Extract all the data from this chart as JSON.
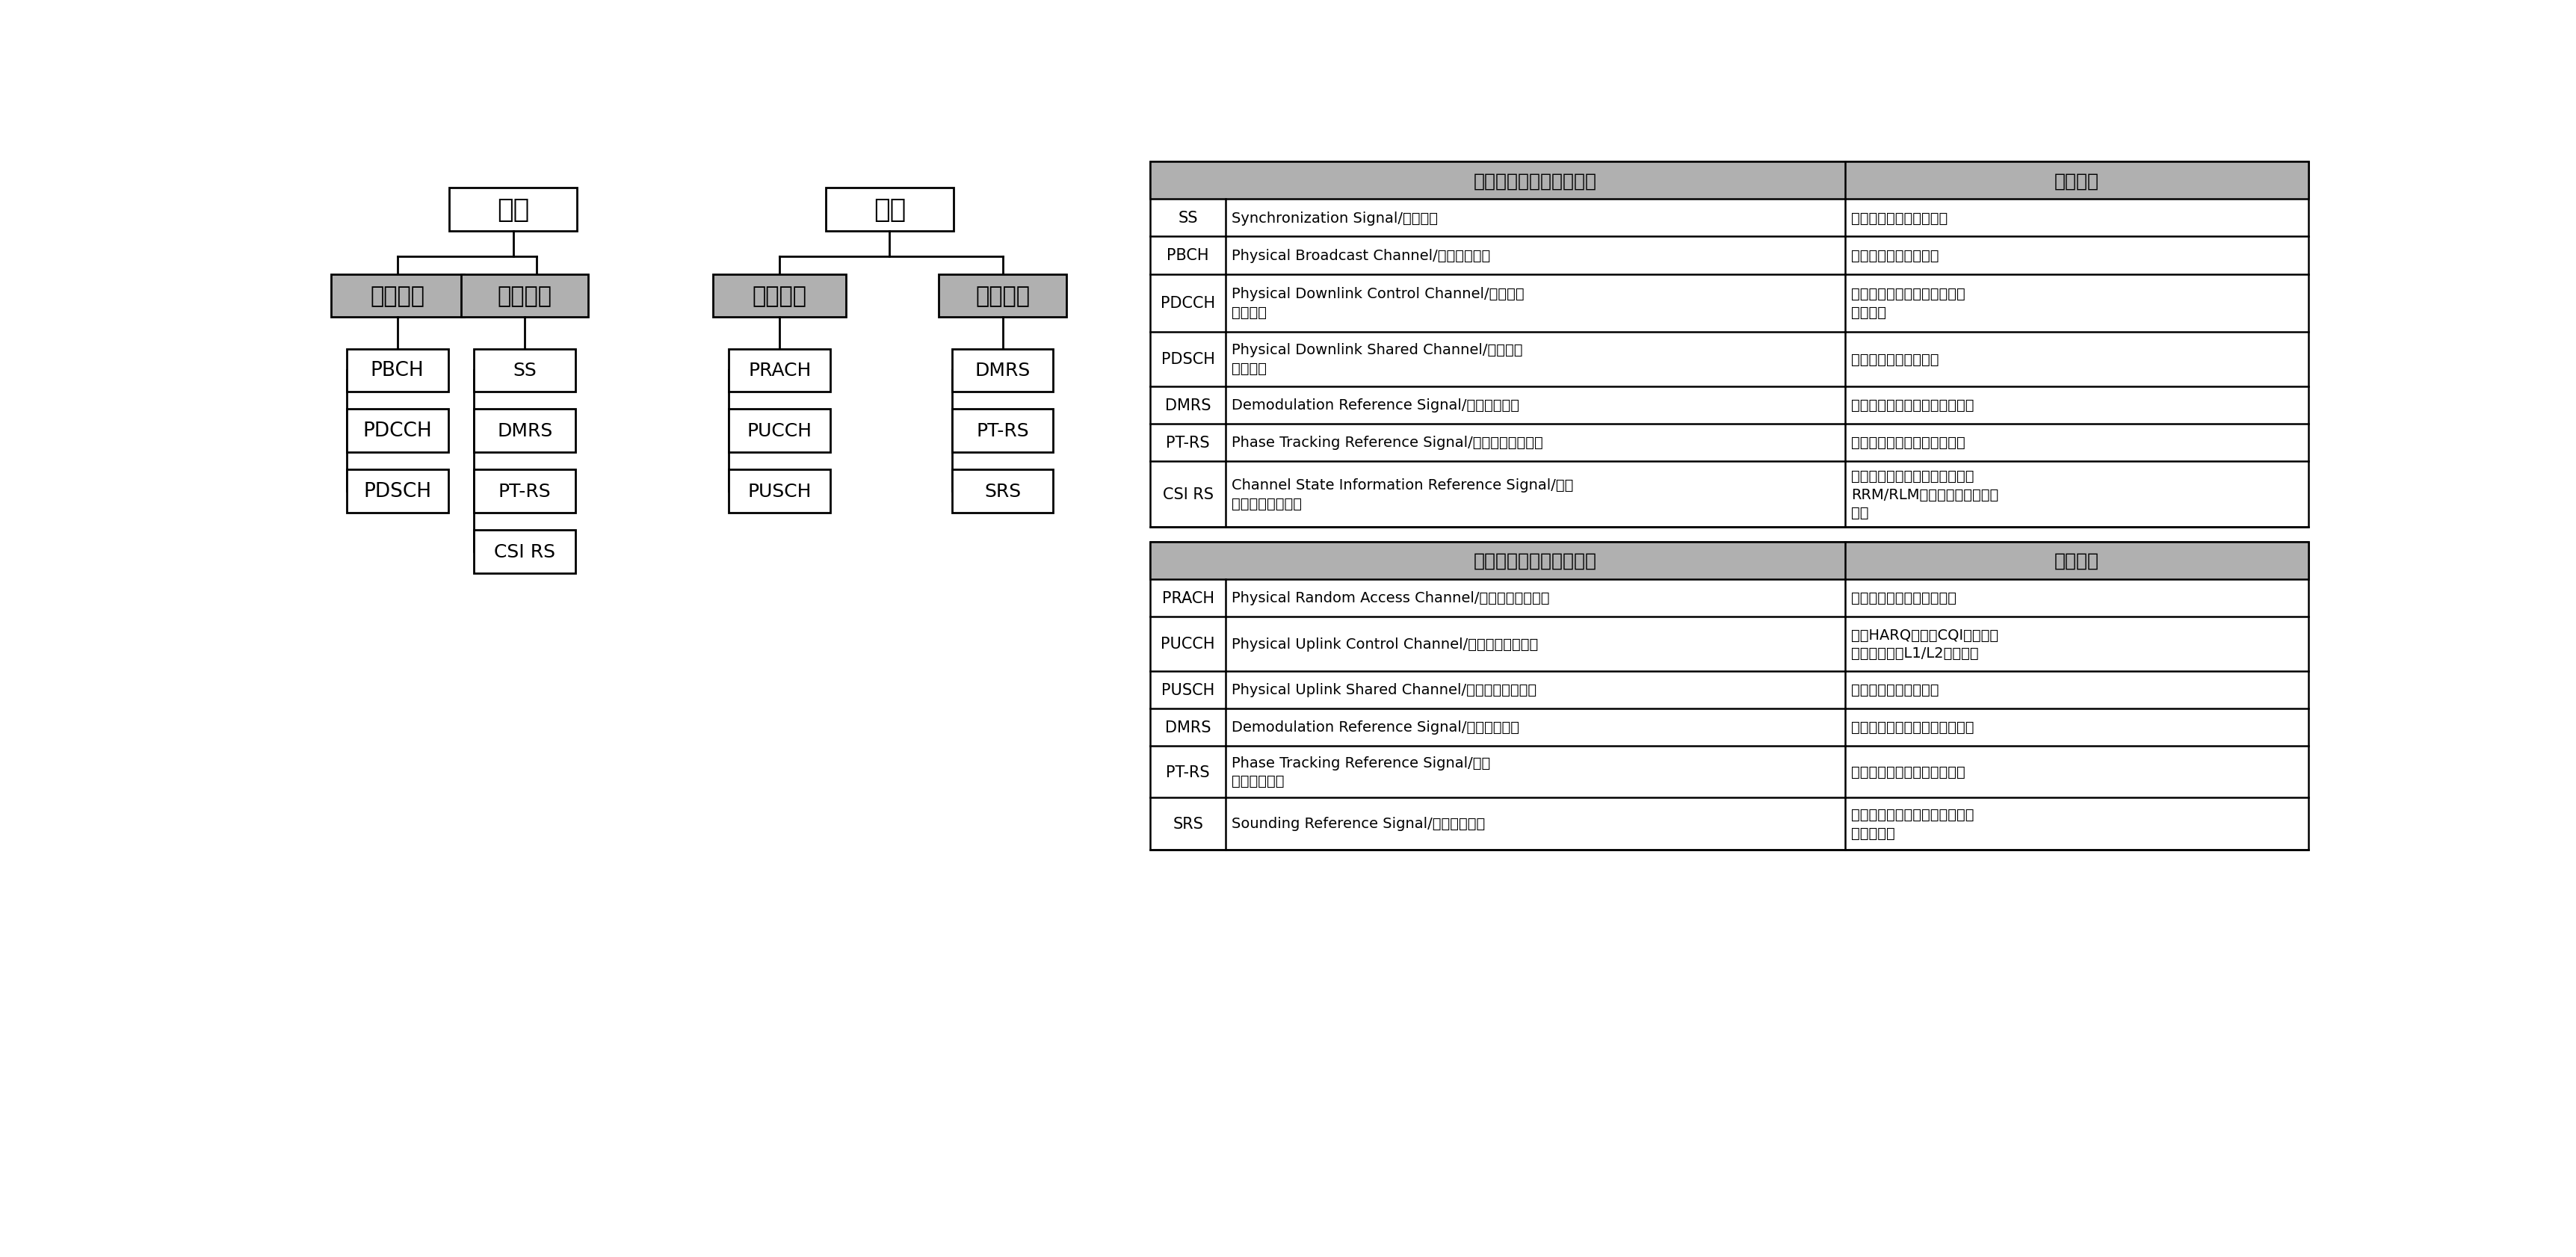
{
  "bg_color": "#ffffff",
  "gray_color": "#b0b0b0",
  "tree_title_dl": "下行",
  "tree_title_ul": "上行",
  "dl_channel_label": "物理信道",
  "dl_signal_label": "物理信号",
  "ul_channel_label": "物理信道",
  "ul_signal_label": "物理信号",
  "dl_channels": [
    "PBCH",
    "PDCCH",
    "PDSCH"
  ],
  "dl_signals": [
    "SS",
    "DMRS",
    "PT-RS",
    "CSI RS"
  ],
  "ul_channels": [
    "PRACH",
    "PUCCH",
    "PUSCH"
  ],
  "ul_signals": [
    "DMRS",
    "PT-RS",
    "SRS"
  ],
  "table_dl_header1": "下行物理信道与信号名称",
  "table_dl_header2": "功能简介",
  "table_dl_rows": [
    [
      "SS",
      "Synchronization Signal/同步信号",
      "用于时频同步和小区搜索"
    ],
    [
      "PBCH",
      "Physical Broadcast Channel/物理广播信道",
      "用于承载系统广播消息"
    ],
    [
      "PDCCH",
      "Physical Downlink Control Channel/物理下行\n控制信道",
      "用于下行调度、功控等控制信\n令的传输"
    ],
    [
      "PDSCH",
      "Physical Downlink Shared Channel/物理下行\n共享信道",
      "用于承载下行用户数据"
    ],
    [
      "DMRS",
      "Demodulation Reference Signal/解调参考信号",
      "用于下行数据解调、时频同步等"
    ],
    [
      "PT-RS",
      "Phase Tracking Reference Signal/相位跟踪参考信号",
      "用于下行相位噪声跟踪和补偿"
    ],
    [
      "CSI RS",
      "Channel State Information Reference Signal/信道\n状态信息参考信号",
      "用于下行信道测量，波束管理，\nRRM/RLM测量和精细化时频跟\n踪等"
    ]
  ],
  "table_ul_header1": "上行物理信道与信号名称",
  "table_ul_header2": "功能简介",
  "table_ul_rows": [
    [
      "PRACH",
      "Physical Random Access Channel/物理随机接入信道",
      "用于用户随机接入请求信息"
    ],
    [
      "PUCCH",
      "Physical Uplink Control Channel/物理上行控制信道",
      "用于HARQ反馈、CQI反馈、调\n度请求指示等L1/L2控制信令"
    ],
    [
      "PUSCH",
      "Physical Uplink Shared Channel/物理上行共享信道",
      "用于承载上行用户数据"
    ],
    [
      "DMRS",
      "Demodulation Reference Signal/解调参考信号",
      "用于上行数据解调、时频同步等"
    ],
    [
      "PT-RS",
      "Phase Tracking Reference Signal/相位\n跟踪参考信号",
      "用于上行相位噪声跟踪和补偿"
    ],
    [
      "SRS",
      "Sounding Reference Signal/探测参考信号",
      "用于上行信道测量、时频同步、\n波束管理等"
    ]
  ]
}
